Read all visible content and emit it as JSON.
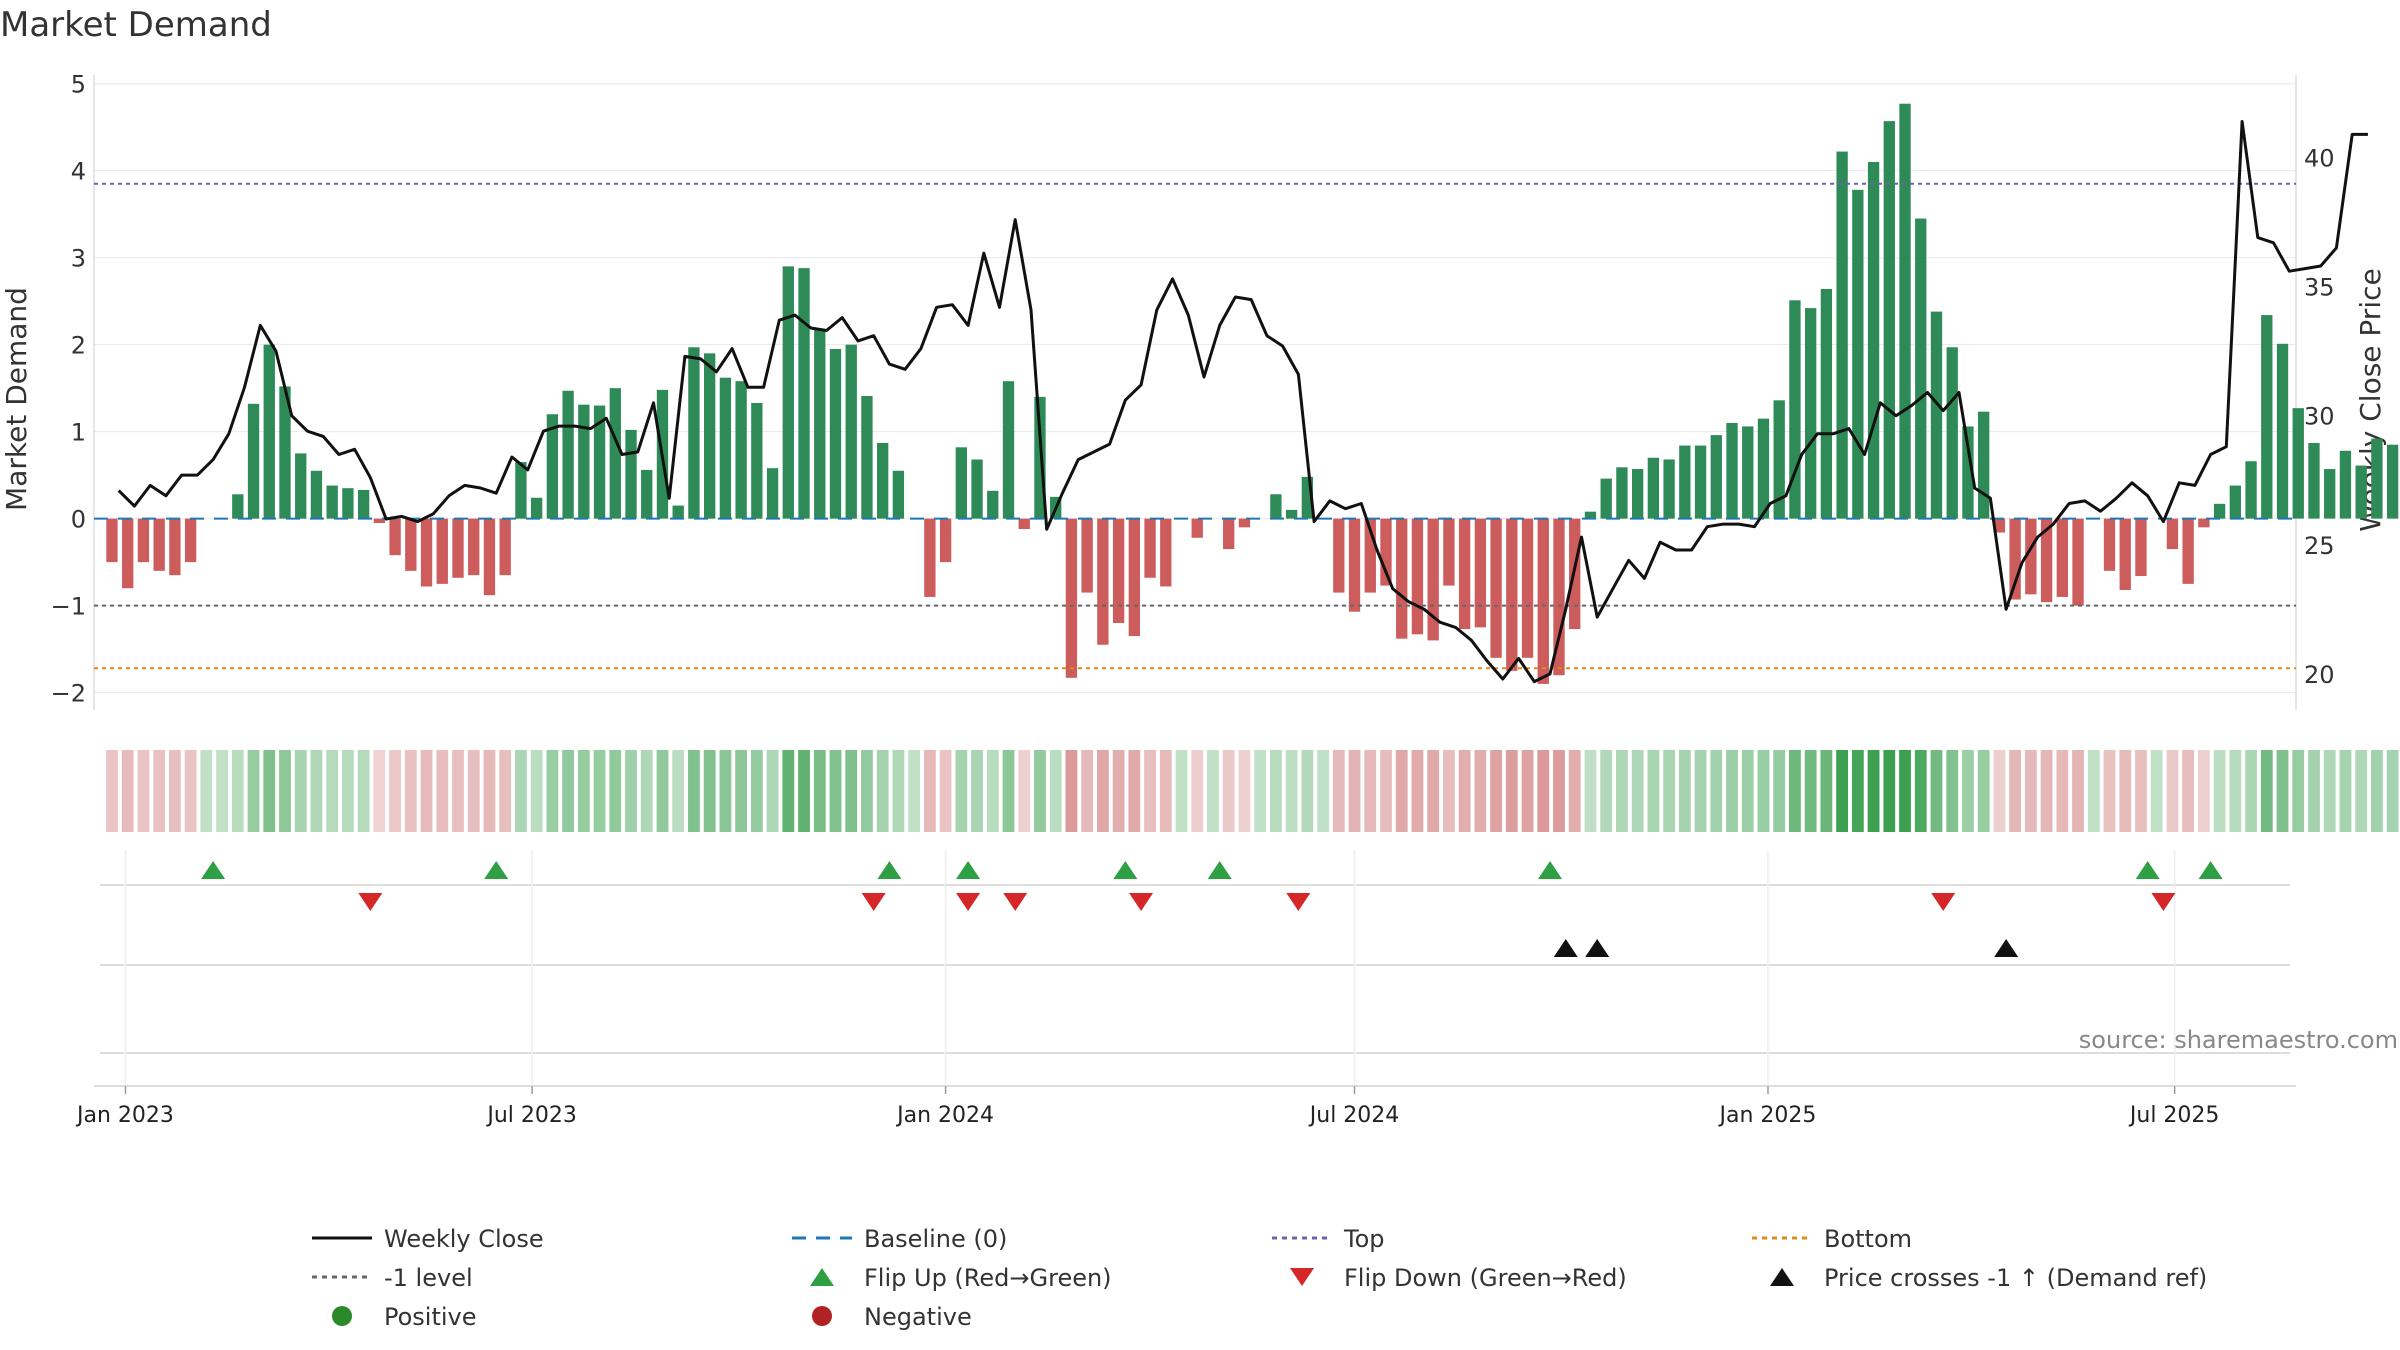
{
  "chart_data": {
    "type": "bar",
    "title": "Market Demand",
    "ylabel": "Market Demand",
    "y2label": "Weekly Close Price",
    "ylim": [
      -2.2,
      5.1
    ],
    "y2lim": [
      18.6,
      43.2
    ],
    "yticks": [
      -2,
      -1,
      0,
      1,
      2,
      3,
      4,
      5
    ],
    "y2ticks": [
      20,
      25,
      30,
      35,
      40
    ],
    "x_start": "2022-12-18",
    "x_end": "2025-08-24",
    "x_ticks": [
      {
        "label": "Jan 2023",
        "date": "2023-01-01"
      },
      {
        "label": "Jul 2023",
        "date": "2023-07-01"
      },
      {
        "label": "Jan 2024",
        "date": "2024-01-01"
      },
      {
        "label": "Jul 2024",
        "date": "2024-07-01"
      },
      {
        "label": "Jan 2025",
        "date": "2025-01-01"
      },
      {
        "label": "Jul 2025",
        "date": "2025-07-01"
      }
    ],
    "bar_start": "2022-12-26",
    "bar_interval_days": 7,
    "demand": [
      -0.5,
      -0.8,
      -0.5,
      -0.6,
      -0.65,
      -0.5,
      0.0,
      0.0,
      0.28,
      1.32,
      2.0,
      1.52,
      0.75,
      0.55,
      0.38,
      0.35,
      0.33,
      -0.05,
      -0.42,
      -0.6,
      -0.78,
      -0.75,
      -0.68,
      -0.65,
      -0.88,
      -0.65,
      0.65,
      0.24,
      1.2,
      1.47,
      1.31,
      1.3,
      1.5,
      1.02,
      0.56,
      1.48,
      0.15,
      1.97,
      1.9,
      1.62,
      1.58,
      1.33,
      0.58,
      2.9,
      2.88,
      2.17,
      1.95,
      2.0,
      1.41,
      0.87,
      0.55,
      0.0,
      -0.9,
      -0.5,
      0.82,
      0.68,
      0.32,
      1.58,
      -0.12,
      1.4,
      0.25,
      -1.83,
      -0.85,
      -1.45,
      -1.2,
      -1.35,
      -0.68,
      -0.78,
      0.0,
      -0.22,
      0.0,
      -0.35,
      -0.1,
      0.0,
      0.28,
      0.1,
      0.48,
      0.0,
      -0.85,
      -1.07,
      -0.85,
      -0.77,
      -1.38,
      -1.33,
      -1.4,
      -0.77,
      -1.27,
      -1.25,
      -1.6,
      -1.75,
      -1.6,
      -1.9,
      -1.8,
      -1.27,
      0.08,
      0.46,
      0.59,
      0.57,
      0.7,
      0.68,
      0.84,
      0.84,
      0.96,
      1.1,
      1.06,
      1.15,
      1.36,
      2.51,
      2.42,
      2.64,
      4.22,
      3.78,
      4.1,
      4.57,
      4.77,
      3.45,
      2.38,
      1.97,
      1.06,
      1.23,
      -0.16,
      -0.93,
      -0.87,
      -0.96,
      -0.9,
      -1.0,
      0.0,
      -0.6,
      -0.82,
      -0.66,
      0.0,
      -0.35,
      -0.75,
      -0.1,
      0.17,
      0.38,
      0.66,
      2.34,
      2.01,
      1.27,
      0.87,
      0.57,
      0.78,
      0.61,
      0.92,
      0.85
    ],
    "close_start": "2022-12-29",
    "close_interval_days": 7,
    "close": [
      27.1,
      26.5,
      27.3,
      26.9,
      27.7,
      27.7,
      28.3,
      29.3,
      31.1,
      33.5,
      32.5,
      30.0,
      29.4,
      29.2,
      28.5,
      28.7,
      27.6,
      26.0,
      26.1,
      25.9,
      26.2,
      26.9,
      27.3,
      27.2,
      27.0,
      28.4,
      27.9,
      29.4,
      29.6,
      29.6,
      29.5,
      29.9,
      28.5,
      28.6,
      30.5,
      26.8,
      32.3,
      32.2,
      31.7,
      32.6,
      31.1,
      31.1,
      33.7,
      33.9,
      33.4,
      33.3,
      33.8,
      32.9,
      33.1,
      32.0,
      31.8,
      32.6,
      34.2,
      34.3,
      33.5,
      36.3,
      34.2,
      37.6,
      34.1,
      25.6,
      27.0,
      28.3,
      28.6,
      28.9,
      30.6,
      31.2,
      34.1,
      35.3,
      33.9,
      31.5,
      33.5,
      34.6,
      34.5,
      33.1,
      32.7,
      31.6,
      25.9,
      26.7,
      26.4,
      26.6,
      24.8,
      23.3,
      22.8,
      22.5,
      22.0,
      21.8,
      21.3,
      20.5,
      19.8,
      20.6,
      19.7,
      20.0,
      22.5,
      25.3,
      22.2,
      23.3,
      24.4,
      23.7,
      25.1,
      24.8,
      24.8,
      25.7,
      25.8,
      25.8,
      25.7,
      26.6,
      26.9,
      28.5,
      29.3,
      29.3,
      29.5,
      28.5,
      30.5,
      30.0,
      30.4,
      30.9,
      30.2,
      30.9,
      27.2,
      26.8,
      22.5,
      24.3,
      25.3,
      25.8,
      26.6,
      26.7,
      26.3,
      26.8,
      27.4,
      26.9,
      25.9,
      27.4,
      27.3,
      28.5,
      28.8,
      41.4,
      36.9,
      36.7,
      35.6,
      35.7,
      35.8,
      36.5,
      40.9,
      40.9
    ],
    "series": [
      {
        "name": "Market Demand",
        "color_positive": "#2e8b57",
        "color_negative": "#cd5c5c"
      },
      {
        "name": "Weekly Close",
        "color": "#111111"
      }
    ],
    "reference_lines": [
      {
        "name": "Top",
        "value": 3.85,
        "color": "#7060b0"
      },
      {
        "name": "-1 level",
        "value": -1.0,
        "color": "#666666"
      },
      {
        "name": "Bottom",
        "value": -1.72,
        "color": "#e08a1e"
      },
      {
        "name": "Baseline (0)",
        "value": 0,
        "color": "#1f77b4"
      }
    ],
    "flip_up_dates": [
      "2023-02-09",
      "2023-06-15",
      "2023-12-07",
      "2024-01-11",
      "2024-03-21",
      "2024-05-02",
      "2024-09-26",
      "2025-06-19",
      "2025-07-17"
    ],
    "flip_down_dates": [
      "2023-04-20",
      "2023-11-30",
      "2024-01-11",
      "2024-02-01",
      "2024-03-28",
      "2024-06-06",
      "2025-03-20",
      "2025-06-26"
    ],
    "price_cross_dates": [
      "2024-10-03",
      "2024-10-17",
      "2025-04-17"
    ],
    "source": "source: sharemaestro.com",
    "legend": [
      {
        "label": "Weekly Close",
        "marker": "line-solid",
        "color": "#111111"
      },
      {
        "label": "Baseline (0)",
        "marker": "line-dash",
        "color": "#1f77b4"
      },
      {
        "label": "Top",
        "marker": "line-dot",
        "color": "#7060b0"
      },
      {
        "label": "Bottom",
        "marker": "line-dot",
        "color": "#e08a1e"
      },
      {
        "label": "-1 level",
        "marker": "line-dot",
        "color": "#666666"
      },
      {
        "label": "Flip Up (Red→Green)",
        "marker": "triangle-up",
        "color": "#2ea043"
      },
      {
        "label": "Flip Down (Green→Red)",
        "marker": "triangle-down",
        "color": "#d62728"
      },
      {
        "label": "Price crosses -1 ↑ (Demand ref)",
        "marker": "triangle-up",
        "color": "#111111"
      },
      {
        "label": "Positive",
        "marker": "circle",
        "color": "#2a8a2a"
      },
      {
        "label": "Negative",
        "marker": "circle",
        "color": "#b22222"
      }
    ]
  }
}
